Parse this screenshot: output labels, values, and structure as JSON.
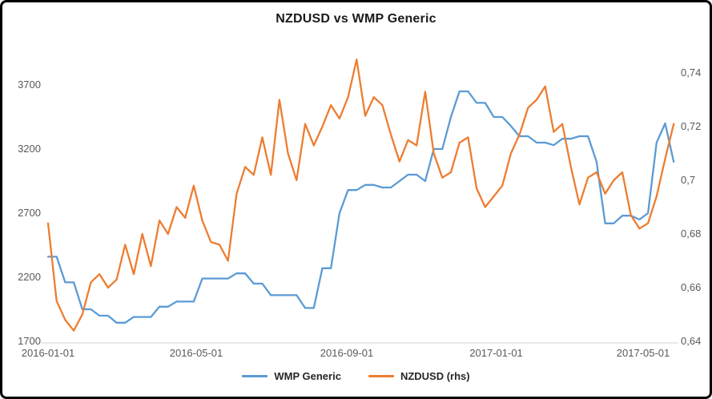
{
  "frame": {
    "background": "#ffffff",
    "border_color": "#000000"
  },
  "chart_data": {
    "type": "line",
    "title": "NZDUSD vs WMP Generic",
    "legend_position": "bottom",
    "grid": false,
    "x": [
      "2016-01-01",
      "2016-01-08",
      "2016-01-15",
      "2016-01-22",
      "2016-01-29",
      "2016-02-05",
      "2016-02-12",
      "2016-02-19",
      "2016-02-26",
      "2016-03-04",
      "2016-03-11",
      "2016-03-18",
      "2016-03-25",
      "2016-04-01",
      "2016-04-08",
      "2016-04-15",
      "2016-04-22",
      "2016-04-29",
      "2016-05-06",
      "2016-05-13",
      "2016-05-20",
      "2016-05-27",
      "2016-06-03",
      "2016-06-10",
      "2016-06-17",
      "2016-06-24",
      "2016-07-01",
      "2016-07-08",
      "2016-07-15",
      "2016-07-22",
      "2016-07-29",
      "2016-08-05",
      "2016-08-12",
      "2016-08-19",
      "2016-08-26",
      "2016-09-02",
      "2016-09-09",
      "2016-09-16",
      "2016-09-23",
      "2016-09-30",
      "2016-10-07",
      "2016-10-14",
      "2016-10-21",
      "2016-10-28",
      "2016-11-04",
      "2016-11-11",
      "2016-11-18",
      "2016-11-25",
      "2016-12-02",
      "2016-12-09",
      "2016-12-16",
      "2016-12-23",
      "2016-12-30",
      "2017-01-06",
      "2017-01-13",
      "2017-01-20",
      "2017-01-27",
      "2017-02-03",
      "2017-02-10",
      "2017-02-17",
      "2017-02-24",
      "2017-03-03",
      "2017-03-10",
      "2017-03-17",
      "2017-03-24",
      "2017-03-31",
      "2017-04-07",
      "2017-04-14",
      "2017-04-21",
      "2017-04-28",
      "2017-05-05",
      "2017-05-12",
      "2017-05-19",
      "2017-05-26"
    ],
    "series": [
      {
        "name": "WMP Generic",
        "axis": "left",
        "color": "#5B9BD5",
        "values": [
          2360,
          2360,
          2160,
          2160,
          1950,
          1950,
          1900,
          1900,
          1845,
          1845,
          1890,
          1890,
          1890,
          1970,
          1970,
          2010,
          2010,
          2010,
          2190,
          2190,
          2190,
          2190,
          2230,
          2230,
          2150,
          2150,
          2060,
          2060,
          2060,
          2060,
          1960,
          1960,
          2270,
          2270,
          2700,
          2880,
          2880,
          2920,
          2920,
          2900,
          2900,
          2950,
          3000,
          3000,
          2950,
          3200,
          3200,
          3450,
          3650,
          3650,
          3560,
          3560,
          3450,
          3450,
          3380,
          3300,
          3300,
          3250,
          3250,
          3230,
          3280,
          3280,
          3300,
          3300,
          3100,
          2620,
          2620,
          2680,
          2680,
          2650,
          2700,
          3250,
          3400,
          3100
        ]
      },
      {
        "name": "NZDUSD (rhs)",
        "axis": "right",
        "color": "#ED7D31",
        "values": [
          0.684,
          0.655,
          0.648,
          0.644,
          0.65,
          0.662,
          0.665,
          0.66,
          0.663,
          0.676,
          0.665,
          0.68,
          0.668,
          0.685,
          0.68,
          0.69,
          0.686,
          0.698,
          0.685,
          0.677,
          0.676,
          0.67,
          0.695,
          0.705,
          0.702,
          0.716,
          0.702,
          0.73,
          0.71,
          0.7,
          0.721,
          0.713,
          0.72,
          0.728,
          0.723,
          0.731,
          0.745,
          0.724,
          0.731,
          0.728,
          0.717,
          0.707,
          0.715,
          0.713,
          0.733,
          0.71,
          0.701,
          0.703,
          0.714,
          0.716,
          0.697,
          0.69,
          0.694,
          0.698,
          0.71,
          0.717,
          0.727,
          0.73,
          0.735,
          0.718,
          0.721,
          0.705,
          0.691,
          0.701,
          0.703,
          0.695,
          0.7,
          0.703,
          0.687,
          0.682,
          0.684,
          0.694,
          0.708,
          0.721
        ]
      }
    ],
    "left_axis": {
      "min": 1700,
      "max": 3700,
      "ticks": [
        {
          "value": 1700,
          "label": "1700"
        },
        {
          "value": 2200,
          "label": "2200"
        },
        {
          "value": 2700,
          "label": "2700"
        },
        {
          "value": 3200,
          "label": "3200"
        },
        {
          "value": 3700,
          "label": "3700"
        }
      ]
    },
    "right_axis": {
      "min": 0.64,
      "max": 0.74,
      "ticks": [
        {
          "value": 0.64,
          "label": "0,64"
        },
        {
          "value": 0.66,
          "label": "0,66"
        },
        {
          "value": 0.68,
          "label": "0,68"
        },
        {
          "value": 0.7,
          "label": "0,7"
        },
        {
          "value": 0.72,
          "label": "0,72"
        },
        {
          "value": 0.74,
          "label": "0,74"
        }
      ]
    },
    "x_ticks": [
      {
        "date": "2016-01-01",
        "label": "2016-01-01"
      },
      {
        "date": "2016-05-01",
        "label": "2016-05-01"
      },
      {
        "date": "2016-09-01",
        "label": "2016-09-01"
      },
      {
        "date": "2017-01-01",
        "label": "2017-01-01"
      },
      {
        "date": "2017-05-01",
        "label": "2017-05-01"
      }
    ]
  }
}
